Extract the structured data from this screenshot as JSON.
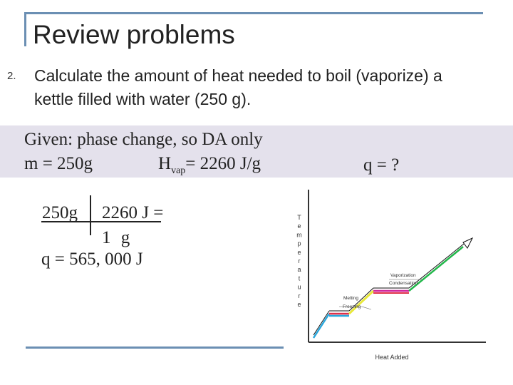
{
  "slide": {
    "title": "Review problems",
    "question_number": "2.",
    "question_text": "Calculate the amount of heat needed to boil (vaporize) a kettle filled with water (250 g)."
  },
  "given": {
    "line1": "Given: phase change, so DA only",
    "mass": "m = 250g",
    "hvap_prefix": "H",
    "hvap_subscript": "vap",
    "hvap_value": "= 2260 J/g",
    "unknown": "q = ?"
  },
  "calculation": {
    "mass": "250g",
    "numerator": "2260 J =",
    "denominator": "1 g",
    "result": "q = 565, 000 J"
  },
  "heating_curve": {
    "y_axis_label": "Temperature",
    "x_axis_label": "Heat Added",
    "melting_label": "Melting",
    "freezing_label": "Freezing",
    "vaporization_label": "Vaporization",
    "condensation_label": "Condensation"
  },
  "colors": {
    "accent_frame": "#6b8fb3",
    "given_band": "#e4e1ec",
    "segment_blue": "#2aa7dc",
    "segment_red": "#e0304a",
    "segment_yellow": "#e8e83a",
    "segment_magenta": "#d0209a",
    "segment_green": "#22b84a"
  }
}
